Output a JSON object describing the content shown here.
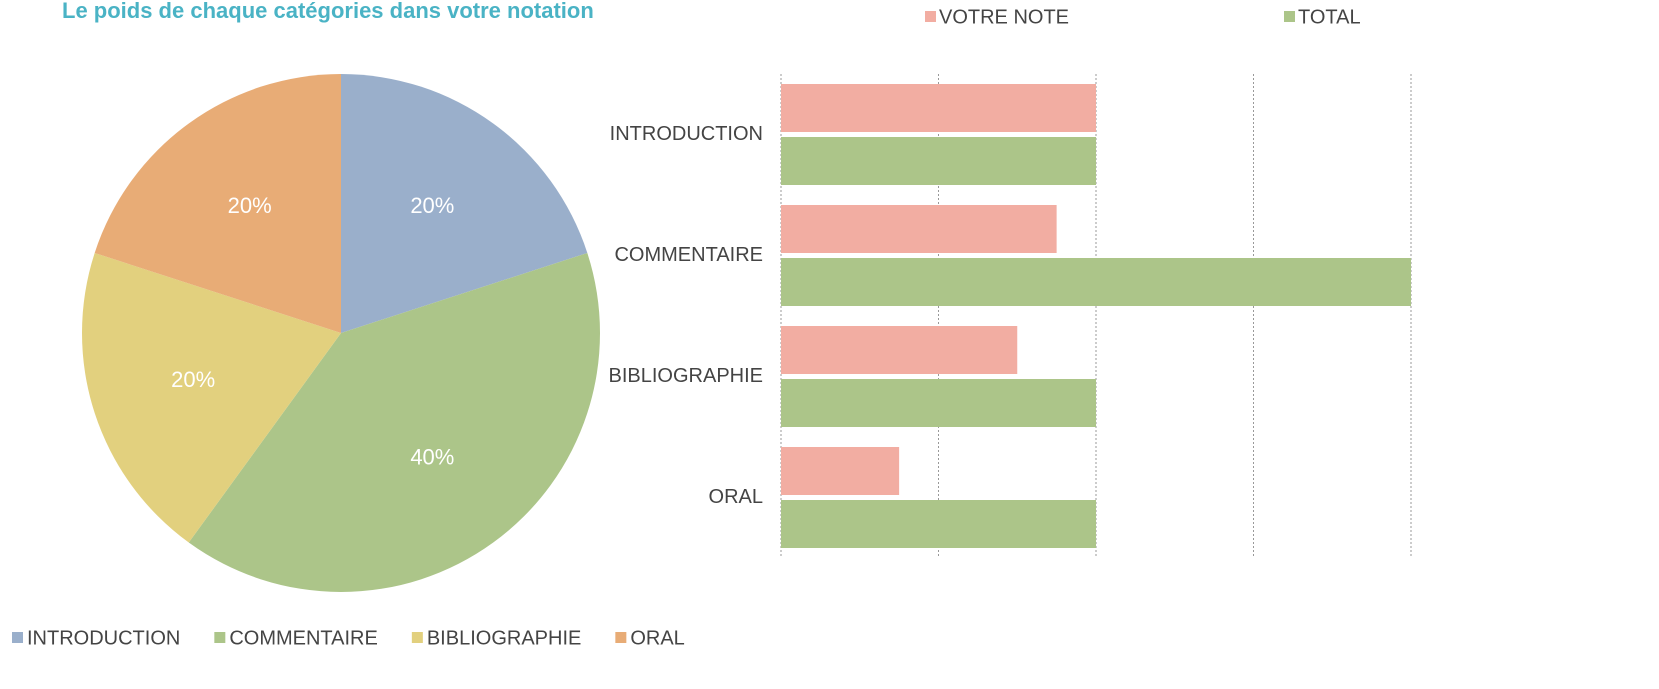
{
  "chart_data": [
    {
      "type": "pie",
      "title": "Le poids de chaque catégories dans votre notation",
      "categories": [
        "INTRODUCTION",
        "COMMENTAIRE",
        "BIBLIOGRAPHIE",
        "ORAL"
      ],
      "values": [
        20,
        40,
        20,
        20
      ],
      "value_labels": [
        "20%",
        "40%",
        "20%",
        "20%"
      ],
      "colors": [
        "#9aafcb",
        "#acc589",
        "#e2d07e",
        "#e8ac76"
      ],
      "legend": "bottom"
    },
    {
      "type": "hbar",
      "categories": [
        "INTRODUCTION",
        "COMMENTAIRE",
        "BIBLIOGRAPHIE",
        "ORAL"
      ],
      "series": [
        {
          "name": "VOTRE NOTE",
          "color": "#f2ada2",
          "values": [
            2,
            1.75,
            1.5,
            0.75
          ]
        },
        {
          "name": "TOTAL",
          "color": "#acc589",
          "values": [
            2,
            4,
            2,
            2
          ]
        }
      ],
      "xlim": [
        0,
        4
      ],
      "xticks": [
        0,
        1,
        2,
        3,
        4
      ],
      "grid": true,
      "legend": "top"
    }
  ]
}
